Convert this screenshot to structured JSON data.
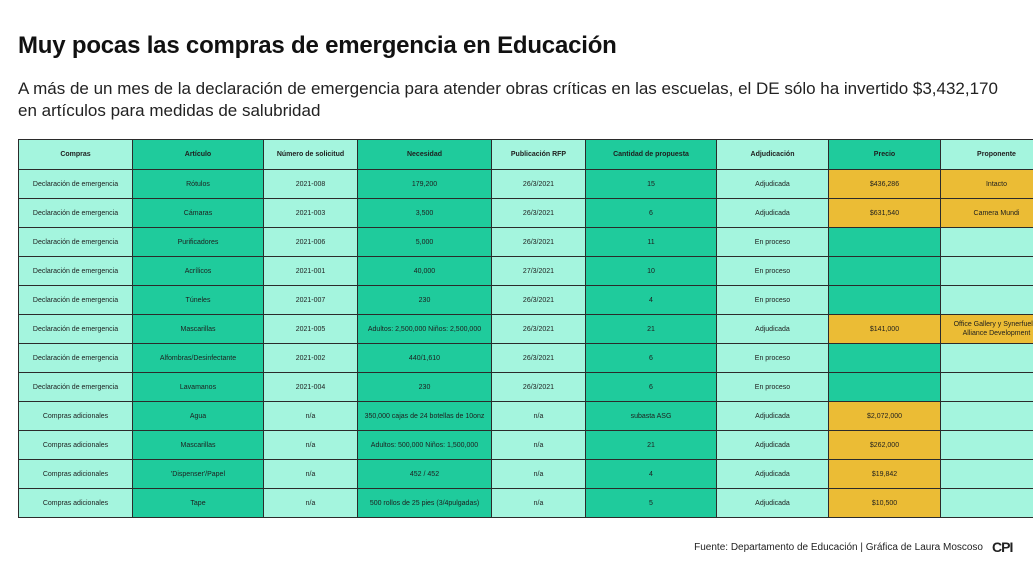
{
  "title": "Muy pocas las compras de emergencia en Educación",
  "subtitle": "A más de un mes de la declaración de emergencia para atender obras críticas en las escuelas, el DE sólo ha invertido $3,432,170 en artículos para medidas de salubridad",
  "chart_data": {
    "type": "table",
    "columns": [
      "Compras",
      "Artículo",
      "Número de solicitud",
      "Necesidad",
      "Publicación RFP",
      "Cantidad de propuesta",
      "Adjudicación",
      "Precio",
      "Proponente"
    ],
    "rows": [
      [
        "Declaración de emergencia",
        "Rótulos",
        "2021-008",
        "179,200",
        "26/3/2021",
        "15",
        "Adjudicada",
        "$436,286",
        "Intacto"
      ],
      [
        "Declaración de emergencia",
        "Cámaras",
        "2021-003",
        "3,500",
        "26/3/2021",
        "6",
        "Adjudicada",
        "$631,540",
        "Camera Mundi"
      ],
      [
        "Declaración de emergencia",
        "Purificadores",
        "2021-006",
        "5,000",
        "26/3/2021",
        "11",
        "En proceso",
        "",
        ""
      ],
      [
        "Declaración de emergencia",
        "Acrílicos",
        "2021-001",
        "40,000",
        "27/3/2021",
        "10",
        "En proceso",
        "",
        ""
      ],
      [
        "Declaración de emergencia",
        "Túneles",
        "2021-007",
        "230",
        "26/3/2021",
        "4",
        "En proceso",
        "",
        ""
      ],
      [
        "Declaración de emergencia",
        "Mascarillas",
        "2021-005",
        "Adultos: 2,500,000 Niños: 2,500,000",
        "26/3/2021",
        "21",
        "Adjudicada",
        "$141,000",
        "Office Gallery y Synerfuel & Alliance Development"
      ],
      [
        "Declaración de emergencia",
        "Alfombras/Desinfectante",
        "2021-002",
        "440/1,610",
        "26/3/2021",
        "6",
        "En proceso",
        "",
        ""
      ],
      [
        "Declaración de emergencia",
        "Lavamanos",
        "2021-004",
        "230",
        "26/3/2021",
        "6",
        "En proceso",
        "",
        ""
      ],
      [
        "Compras adicionales",
        "Agua",
        "n/a",
        "350,000 cajas de 24 botellas de 10onz",
        "n/a",
        "subasta ASG",
        "Adjudicada",
        "$2,072,000",
        ""
      ],
      [
        "Compras adicionales",
        "Mascarillas",
        "n/a",
        "Adultos: 500,000 Niños: 1,500,000",
        "n/a",
        "21",
        "Adjudicada",
        "$262,000",
        ""
      ],
      [
        "Compras adicionales",
        "'Dispenser'/Papel",
        "n/a",
        "452 / 452",
        "n/a",
        "4",
        "Adjudicada",
        "$19,842",
        ""
      ],
      [
        "Compras adicionales",
        "Tape",
        "n/a",
        "500 rollos de 25 pies (3/4pulgadas)",
        "n/a",
        "5",
        "Adjudicada",
        "$10,500",
        ""
      ]
    ]
  },
  "footer": {
    "source": "Fuente: Departamento de Educación | Gráfica de Laura Moscoso",
    "logo": "CPI"
  },
  "colors": {
    "light": "#a4f5de",
    "dark": "#1fcb9c",
    "gold": "#ebbc35"
  }
}
